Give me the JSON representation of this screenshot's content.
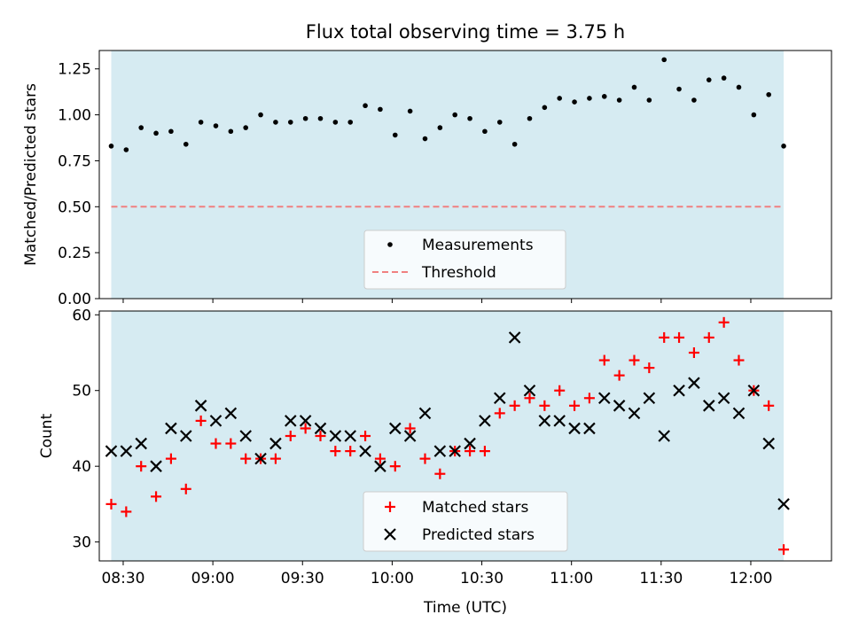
{
  "chart_data": [
    {
      "type": "scatter",
      "title": "Flux total observing time = 3.75 h",
      "xlabel": "",
      "ylabel": "Matched/Predicted stars",
      "xlim": [
        "08:22",
        "12:27"
      ],
      "ylim": [
        0,
        1.35
      ],
      "yticks": [
        "0.00",
        "0.25",
        "0.50",
        "0.75",
        "1.00",
        "1.25"
      ],
      "observing_span": [
        "08:26",
        "12:11"
      ],
      "threshold": 0.5,
      "legend_position": "lower-center",
      "legend": [
        "Measurements",
        "Threshold"
      ],
      "colors": {
        "measurements": "#000000",
        "threshold": "#f08080",
        "span": "#add8e6"
      },
      "times": [
        "08:26",
        "08:31",
        "08:36",
        "08:41",
        "08:46",
        "08:51",
        "08:56",
        "09:01",
        "09:06",
        "09:11",
        "09:16",
        "09:21",
        "09:26",
        "09:31",
        "09:36",
        "09:41",
        "09:46",
        "09:51",
        "09:56",
        "10:01",
        "10:06",
        "10:11",
        "10:16",
        "10:21",
        "10:26",
        "10:31",
        "10:36",
        "10:41",
        "10:46",
        "10:51",
        "10:56",
        "11:01",
        "11:06",
        "11:11",
        "11:16",
        "11:21",
        "11:26",
        "11:31",
        "11:36",
        "11:41",
        "11:46",
        "11:51",
        "11:56",
        "12:01",
        "12:06",
        "12:11"
      ],
      "values": [
        0.83,
        0.81,
        0.93,
        0.9,
        0.91,
        0.84,
        0.96,
        0.94,
        0.91,
        0.93,
        1.0,
        0.96,
        0.96,
        0.98,
        0.98,
        0.96,
        0.96,
        1.05,
        1.03,
        0.89,
        1.02,
        0.87,
        0.93,
        1.0,
        0.98,
        0.91,
        0.96,
        0.84,
        0.98,
        1.04,
        1.09,
        1.07,
        1.09,
        1.1,
        1.08,
        1.15,
        1.08,
        1.3,
        1.14,
        1.08,
        1.19,
        1.2,
        1.15,
        1.0,
        1.11,
        0.83
      ]
    },
    {
      "type": "scatter",
      "title": "",
      "xlabel": "Time (UTC)",
      "ylabel": "Count",
      "xlim": [
        "08:22",
        "12:27"
      ],
      "ylim": [
        27.5,
        60.5
      ],
      "yticks": [
        "30",
        "40",
        "50",
        "60"
      ],
      "xticks": [
        "08:30",
        "09:00",
        "09:30",
        "10:00",
        "10:30",
        "11:00",
        "11:30",
        "12:00"
      ],
      "observing_span": [
        "08:26",
        "12:11"
      ],
      "legend_position": "lower-center",
      "times": [
        "08:26",
        "08:31",
        "08:36",
        "08:41",
        "08:46",
        "08:51",
        "08:56",
        "09:01",
        "09:06",
        "09:11",
        "09:16",
        "09:21",
        "09:26",
        "09:31",
        "09:36",
        "09:41",
        "09:46",
        "09:51",
        "09:56",
        "10:01",
        "10:06",
        "10:11",
        "10:16",
        "10:21",
        "10:26",
        "10:31",
        "10:36",
        "10:41",
        "10:46",
        "10:51",
        "10:56",
        "11:01",
        "11:06",
        "11:11",
        "11:16",
        "11:21",
        "11:26",
        "11:31",
        "11:36",
        "11:41",
        "11:46",
        "11:51",
        "11:56",
        "12:01",
        "12:06",
        "12:11"
      ],
      "series": [
        {
          "name": "Matched stars",
          "marker": "plus",
          "color": "#ff0000",
          "values": [
            35,
            34,
            40,
            36,
            41,
            37,
            46,
            43,
            43,
            41,
            41,
            41,
            44,
            45,
            44,
            42,
            42,
            44,
            41,
            40,
            45,
            41,
            39,
            42,
            42,
            42,
            47,
            48,
            49,
            48,
            50,
            48,
            49,
            54,
            52,
            54,
            53,
            57,
            57,
            55,
            57,
            59,
            54,
            50,
            48,
            29
          ]
        },
        {
          "name": "Predicted stars",
          "marker": "x",
          "color": "#000000",
          "values": [
            42,
            42,
            43,
            40,
            45,
            44,
            48,
            46,
            47,
            44,
            41,
            43,
            46,
            46,
            45,
            44,
            44,
            42,
            40,
            45,
            44,
            47,
            42,
            42,
            43,
            46,
            49,
            57,
            50,
            46,
            46,
            45,
            45,
            49,
            48,
            47,
            49,
            44,
            50,
            51,
            48,
            49,
            47,
            50,
            43,
            35
          ]
        }
      ]
    }
  ]
}
